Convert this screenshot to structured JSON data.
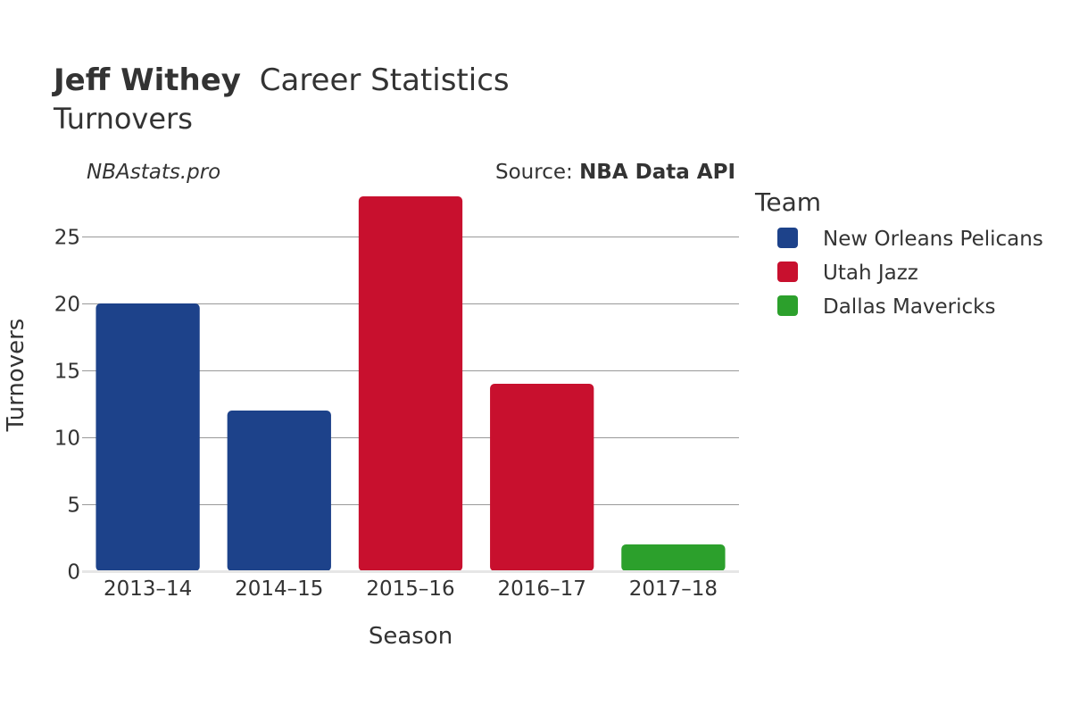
{
  "header": {
    "player_name": "Jeff Withey",
    "title_rest": "Career Statistics",
    "subtitle": "Turnovers"
  },
  "watermark": "NBAstats.pro",
  "source": {
    "prefix": "Source: ",
    "name": "NBA Data API"
  },
  "chart_data": {
    "type": "bar",
    "title": "Jeff Withey Career Statistics",
    "subtitle": "Turnovers",
    "xlabel": "Season",
    "ylabel": "Turnovers",
    "categories": [
      "2013–14",
      "2014–15",
      "2015–16",
      "2016–17",
      "2017–18"
    ],
    "values": [
      20,
      12,
      28,
      14,
      2
    ],
    "teams": [
      "New Orleans Pelicans",
      "New Orleans Pelicans",
      "Utah Jazz",
      "Utah Jazz",
      "Dallas Mavericks"
    ],
    "ylim": [
      0,
      29
    ],
    "yticks": [
      0,
      5,
      10,
      15,
      20,
      25
    ],
    "grid": true,
    "legend": {
      "title": "Team",
      "placement": "right",
      "entries": [
        {
          "name": "New Orleans Pelicans",
          "color": "#1d428a"
        },
        {
          "name": "Utah Jazz",
          "color": "#c8102e"
        },
        {
          "name": "Dallas Mavericks",
          "color": "#2ca02c"
        }
      ]
    }
  }
}
